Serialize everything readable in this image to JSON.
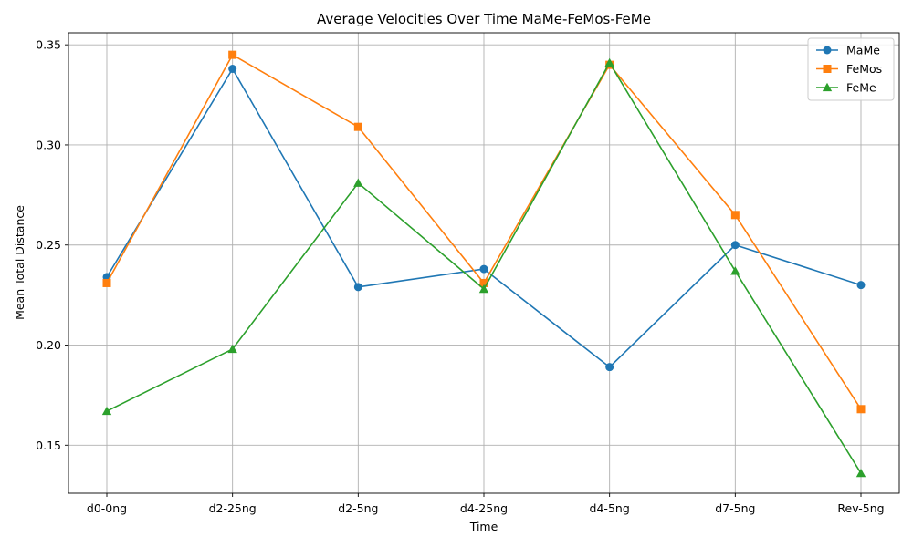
{
  "chart_data": {
    "type": "line",
    "title": "Average Velocities Over Time MaMe-FeMos-FeMe",
    "xlabel": "Time",
    "ylabel": "Mean Total Distance",
    "categories": [
      "d0-0ng",
      "d2-25ng",
      "d2-5ng",
      "d4-25ng",
      "d4-5ng",
      "d7-5ng",
      "Rev-5ng"
    ],
    "ylim": [
      0.126,
      0.356
    ],
    "yticks": [
      0.15,
      0.2,
      0.25,
      0.3,
      0.35
    ],
    "ytick_labels": [
      "0.15",
      "0.20",
      "0.25",
      "0.30",
      "0.35"
    ],
    "grid": true,
    "legend_position": "top-right",
    "series": [
      {
        "name": "MaMe",
        "color": "#1f77b4",
        "marker": "circle",
        "values": [
          0.234,
          0.338,
          0.229,
          0.238,
          0.189,
          0.25,
          0.23
        ]
      },
      {
        "name": "FeMos",
        "color": "#ff7f0e",
        "marker": "square",
        "values": [
          0.231,
          0.345,
          0.309,
          0.231,
          0.34,
          0.265,
          0.168
        ]
      },
      {
        "name": "FeMe",
        "color": "#2ca02c",
        "marker": "triangle",
        "values": [
          0.167,
          0.198,
          0.281,
          0.228,
          0.341,
          0.237,
          0.136
        ]
      }
    ]
  }
}
